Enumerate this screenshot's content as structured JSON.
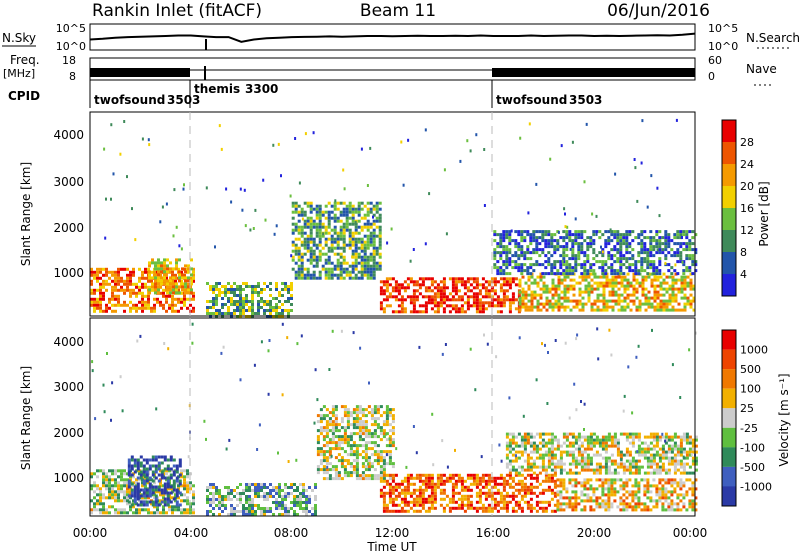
{
  "header": {
    "radar": "Rankin Inlet (fitACF)",
    "beam": "Beam 11",
    "date": "06/Jun/2016"
  },
  "colors": {
    "axis": "#000000",
    "mode_divider": "#bbbbbb"
  },
  "chart_data": [
    {
      "type": "line",
      "panel": "noise",
      "left_label": "N.Sky",
      "right_label": "N.Search",
      "left_ticks": [
        "10^5",
        "10^0"
      ],
      "right_ticks": [
        "10^5",
        "10^0"
      ],
      "x_ticks": [
        "00:00",
        "04:00",
        "08:00",
        "12:00",
        "16:00",
        "20:00",
        "00:00"
      ],
      "xlim_hours": [
        0,
        24
      ],
      "series": [
        {
          "x": [
            0,
            0.5,
            1,
            1.5,
            2,
            2.5,
            3,
            3.5,
            4,
            4.5,
            5,
            5.5,
            6,
            6.5,
            7,
            7.5,
            8,
            8.5,
            9,
            9.5,
            10,
            10.5,
            11,
            11.5,
            12,
            12.5,
            13,
            13.5,
            14,
            14.5,
            15,
            15.5,
            16,
            16.5,
            17,
            17.5,
            18,
            18.5,
            19,
            19.5,
            20,
            20.5,
            21,
            21.5,
            22,
            22.5,
            23,
            23.5,
            24
          ],
          "y": [
            0.45,
            0.48,
            0.52,
            0.55,
            0.57,
            0.58,
            0.6,
            0.62,
            0.62,
            0.58,
            0.55,
            0.55,
            0.35,
            0.45,
            0.5,
            0.52,
            0.55,
            0.56,
            0.57,
            0.58,
            0.57,
            0.58,
            0.6,
            0.6,
            0.59,
            0.6,
            0.61,
            0.6,
            0.6,
            0.61,
            0.6,
            0.62,
            0.6,
            0.6,
            0.6,
            0.62,
            0.6,
            0.61,
            0.62,
            0.62,
            0.6,
            0.61,
            0.6,
            0.61,
            0.62,
            0.63,
            0.62,
            0.65,
            0.7
          ]
        }
      ]
    },
    {
      "type": "bar",
      "panel": "frequency",
      "left_label": "Freq.",
      "left_unit": "[MHz]",
      "left_ticks": [
        "18",
        "8"
      ],
      "right_label": "Nave",
      "right_ticks": [
        "60",
        "0"
      ],
      "cpid_label": "CPID",
      "modes": [
        {
          "name": "twofsound",
          "id": "3503",
          "start_hour": 0,
          "end_hour": 4.1
        },
        {
          "name": "themis",
          "id": "3300",
          "start_hour": 4.1,
          "end_hour": 16
        },
        {
          "name": "twofsound",
          "id": "3503",
          "start_hour": 16,
          "end_hour": 24
        }
      ]
    },
    {
      "type": "heatmap",
      "panel": "power",
      "ylabel": "Slant Range [km]",
      "y_ticks": [
        "4000",
        "3000",
        "2000",
        "1000"
      ],
      "ylim": [
        180,
        4500
      ],
      "xlim_hours": [
        0,
        24
      ],
      "colorbar_label": "Power [dB]",
      "colorbar_ticks": [
        "28",
        "24",
        "20",
        "16",
        "12",
        "8",
        "4"
      ],
      "colorscale": [
        "#2222dd",
        "#2255aa",
        "#3f8a5a",
        "#6bbf3f",
        "#f2d000",
        "#f59a00",
        "#ee5500",
        "#e80000"
      ],
      "regions": [
        {
          "h0": 0.0,
          "h1": 4.1,
          "r0": 250,
          "r1": 1200,
          "level": 0.75
        },
        {
          "h0": 2.3,
          "h1": 4.0,
          "r0": 700,
          "r1": 1400,
          "level": 0.6
        },
        {
          "h0": 4.6,
          "h1": 8.0,
          "r0": 200,
          "r1": 900,
          "level": 0.4
        },
        {
          "h0": 8.0,
          "h1": 11.5,
          "r0": 1000,
          "r1": 2600,
          "level": 0.35
        },
        {
          "h0": 11.5,
          "h1": 17.0,
          "r0": 300,
          "r1": 1000,
          "level": 0.9
        },
        {
          "h0": 17.0,
          "h1": 24.0,
          "r0": 300,
          "r1": 1100,
          "level": 0.6
        },
        {
          "h0": 16.0,
          "h1": 24.0,
          "r0": 1100,
          "r1": 2000,
          "level": 0.25
        }
      ]
    },
    {
      "type": "heatmap",
      "panel": "velocity",
      "xlabel": "Time UT",
      "ylabel": "Slant Range [km]",
      "y_ticks": [
        "4000",
        "3000",
        "2000",
        "1000"
      ],
      "ylim": [
        180,
        4500
      ],
      "x_ticks": [
        "00:00",
        "04:00",
        "08:00",
        "12:00",
        "16:00",
        "20:00",
        "00:00"
      ],
      "xlim_hours": [
        0,
        24
      ],
      "colorbar_label": "Velocity [m s⁻¹]",
      "colorbar_ticks": [
        "1000",
        "500",
        "100",
        "25",
        "-25",
        "-100",
        "-500",
        "-1000"
      ],
      "colorscale": [
        "#2b3aa6",
        "#3f5fbf",
        "#2f8a5a",
        "#5fbf3f",
        "#cccccc",
        "#f2b000",
        "#f07800",
        "#ee4400",
        "#e80000"
      ],
      "regions": [
        {
          "h0": 0.0,
          "h1": 4.1,
          "r0": 250,
          "r1": 1200,
          "level": 0.45
        },
        {
          "h0": 1.5,
          "h1": 3.6,
          "r0": 400,
          "r1": 1500,
          "level": 0.1
        },
        {
          "h0": 4.6,
          "h1": 9.0,
          "r0": 200,
          "r1": 900,
          "level": 0.35
        },
        {
          "h0": 9.0,
          "h1": 12.0,
          "r0": 1000,
          "r1": 2600,
          "level": 0.5
        },
        {
          "h0": 11.5,
          "h1": 18.5,
          "r0": 300,
          "r1": 1100,
          "level": 0.78
        },
        {
          "h0": 16.5,
          "h1": 24.0,
          "r0": 1100,
          "r1": 2000,
          "level": 0.5
        },
        {
          "h0": 18.5,
          "h1": 24.0,
          "r0": 300,
          "r1": 1000,
          "level": 0.6
        }
      ]
    }
  ]
}
